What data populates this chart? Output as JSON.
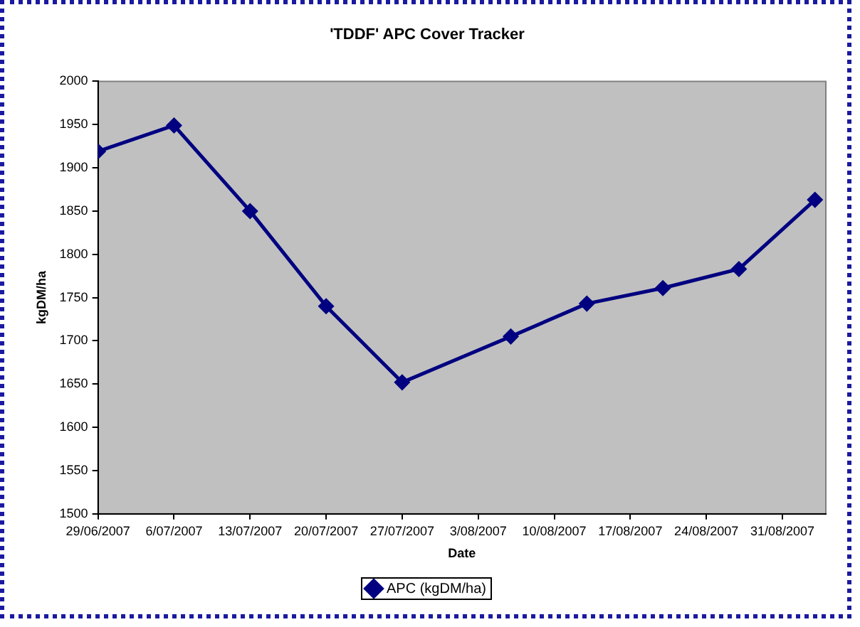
{
  "chart_data": {
    "type": "line",
    "title": "'TDDF' APC Cover Tracker",
    "xlabel": "Date",
    "ylabel": "kgDM/ha",
    "x": [
      "2007-06-29",
      "2007-07-06",
      "2007-07-13",
      "2007-07-20",
      "2007-07-27",
      "2007-08-06",
      "2007-08-13",
      "2007-08-20",
      "2007-08-27",
      "2007-09-03"
    ],
    "series": [
      {
        "name": "APC (kgDM/ha)",
        "color": "#000080",
        "values": [
          1919,
          1949,
          1850,
          1740,
          1652,
          1705,
          1743,
          1761,
          1783,
          1863
        ]
      }
    ],
    "xlim": [
      "2007-06-29",
      "2007-09-04"
    ],
    "xticks": [
      {
        "value": "2007-06-29",
        "label": "29/06/2007"
      },
      {
        "value": "2007-07-06",
        "label": "6/07/2007"
      },
      {
        "value": "2007-07-13",
        "label": "13/07/2007"
      },
      {
        "value": "2007-07-20",
        "label": "20/07/2007"
      },
      {
        "value": "2007-07-27",
        "label": "27/07/2007"
      },
      {
        "value": "2007-08-03",
        "label": "3/08/2007"
      },
      {
        "value": "2007-08-10",
        "label": "10/08/2007"
      },
      {
        "value": "2007-08-17",
        "label": "17/08/2007"
      },
      {
        "value": "2007-08-24",
        "label": "24/08/2007"
      },
      {
        "value": "2007-08-31",
        "label": "31/08/2007"
      }
    ],
    "ylim": [
      1500,
      2000
    ],
    "yticks": [
      1500,
      1550,
      1600,
      1650,
      1700,
      1750,
      1800,
      1850,
      1900,
      1950,
      2000
    ],
    "grid": false,
    "legend": "bottom",
    "marker": "diamond",
    "line_style": "solid"
  }
}
